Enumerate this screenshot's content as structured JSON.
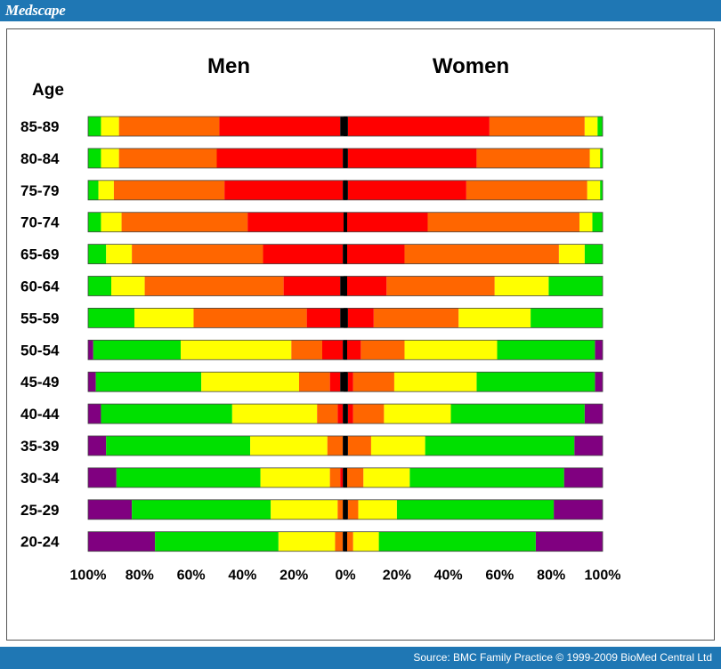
{
  "header": {
    "brand": "Medscape"
  },
  "footer": {
    "source": "Source: BMC Family Practice © 1999-2009 BioMed Central Ltd"
  },
  "chart_data": {
    "type": "bar",
    "orientation": "horizontal-diverging-stacked",
    "panel_titles": {
      "left": "Men",
      "right": "Women"
    },
    "ylabel": "Age",
    "x_tick_labels": [
      "100%",
      "80%",
      "60%",
      "40%",
      "20%",
      "0%",
      "20%",
      "40%",
      "60%",
      "80%",
      "100%"
    ],
    "xlim": [
      0,
      100
    ],
    "categories": [
      "85-89",
      "80-84",
      "75-79",
      "70-74",
      "65-69",
      "60-64",
      "55-59",
      "50-54",
      "45-49",
      "40-44",
      "35-39",
      "30-34",
      "25-29",
      "20-24"
    ],
    "segment_colors": [
      "#800080",
      "#00e000",
      "#ffff00",
      "#ff6600",
      "#ff0000",
      "#000000"
    ],
    "series": {
      "men": [
        [
          0,
          5,
          7,
          39,
          47,
          2
        ],
        [
          0,
          5,
          7,
          38,
          49,
          1
        ],
        [
          0,
          4,
          6,
          43,
          46,
          1
        ],
        [
          0,
          5,
          8,
          49,
          38,
          0
        ],
        [
          0,
          7,
          10,
          51,
          31,
          1
        ],
        [
          0,
          9,
          13,
          54,
          22,
          2
        ],
        [
          0,
          18,
          23,
          44,
          13,
          2
        ],
        [
          2,
          34,
          43,
          12,
          8,
          1
        ],
        [
          3,
          41,
          38,
          12,
          4,
          2
        ],
        [
          5,
          51,
          33,
          8,
          2,
          1
        ],
        [
          7,
          56,
          30,
          6,
          0,
          1
        ],
        [
          11,
          56,
          27,
          4,
          1,
          1
        ],
        [
          17,
          54,
          26,
          2,
          0,
          1
        ],
        [
          26,
          48,
          22,
          3,
          0,
          1
        ]
      ],
      "women": [
        [
          0,
          2,
          5,
          37,
          55,
          1
        ],
        [
          0,
          1,
          4,
          44,
          50,
          1
        ],
        [
          0,
          1,
          5,
          47,
          46,
          1
        ],
        [
          0,
          4,
          5,
          59,
          32,
          0
        ],
        [
          0,
          7,
          10,
          60,
          23,
          0
        ],
        [
          0,
          21,
          21,
          42,
          16,
          0
        ],
        [
          0,
          28,
          28,
          33,
          10,
          1
        ],
        [
          3,
          38,
          36,
          17,
          6,
          0
        ],
        [
          3,
          46,
          32,
          16,
          2,
          1
        ],
        [
          7,
          52,
          26,
          12,
          2,
          1
        ],
        [
          11,
          58,
          21,
          9,
          0,
          1
        ],
        [
          15,
          60,
          18,
          7,
          0,
          0
        ],
        [
          19,
          61,
          15,
          4,
          0,
          1
        ],
        [
          26,
          61,
          10,
          3,
          0,
          0
        ]
      ]
    }
  }
}
